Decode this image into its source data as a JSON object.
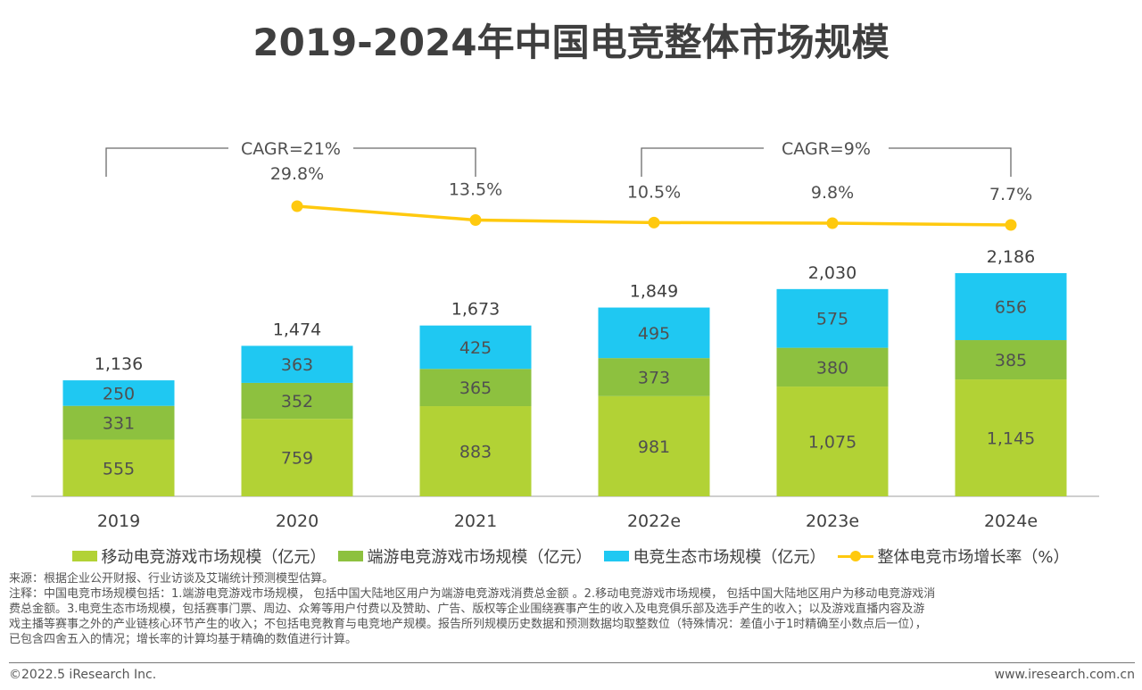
{
  "title": "2019-2024年中国电竞整体市场规模",
  "chart_data": {
    "type": "bar",
    "stacked": true,
    "title": "2019-2024年中国电竞整体市场规模",
    "categories": [
      "2019",
      "2020",
      "2021",
      "2022e",
      "2023e",
      "2024e"
    ],
    "series": [
      {
        "name": "移动电竞游戏市场规模（亿元）",
        "type": "bar",
        "color": "#b2d235",
        "values": [
          555,
          759,
          883,
          981,
          1075,
          1145
        ],
        "labels": [
          "555",
          "759",
          "883",
          "981",
          "1,075",
          "1,145"
        ]
      },
      {
        "name": "端游电竞游戏市场规模（亿元）",
        "type": "bar",
        "color": "#8dc13f",
        "values": [
          331,
          352,
          365,
          373,
          380,
          385
        ],
        "labels": [
          "331",
          "352",
          "365",
          "373",
          "380",
          "385"
        ]
      },
      {
        "name": "电竞生态市场规模（亿元）",
        "type": "bar",
        "color": "#1fc8f2",
        "values": [
          250,
          363,
          425,
          495,
          575,
          656
        ],
        "labels": [
          "250",
          "363",
          "425",
          "495",
          "575",
          "656"
        ]
      },
      {
        "name": "整体电竞市场增长率（%）",
        "type": "line",
        "color": "#ffc90e",
        "values": [
          null,
          29.8,
          13.5,
          10.5,
          9.8,
          7.7
        ],
        "labels": [
          "",
          "29.8%",
          "13.5%",
          "10.5%",
          "9.8%",
          "7.7%"
        ]
      }
    ],
    "totals": [
      1136,
      1474,
      1673,
      1849,
      2030,
      2186
    ],
    "total_labels": [
      "1,136",
      "1,474",
      "1,673",
      "1,849",
      "2,030",
      "2,186"
    ],
    "annotations": [
      {
        "text": "CAGR=21%",
        "from": "2019",
        "to": "2021"
      },
      {
        "text": "CAGR=9%",
        "from": "2022e",
        "to": "2024e"
      }
    ],
    "xlabel": "",
    "ylabel": "",
    "ylim": [
      0,
      2186
    ],
    "grid": false,
    "legend": "bottom"
  },
  "notes": {
    "source": "来源：根据企业公开财报、行业访谈及艾瑞统计预测模型估算。",
    "lines": [
      "注释：中国电竞市场规模包括：1.端游电竞游戏市场规模， 包括中国大陆地区用户为端游电竞游戏消费总金额 。2.移动电竞游戏市场规模， 包括中国大陆地区用户为移动电竞游戏消",
      "费总金额。3.电竞生态市场规模，包括赛事门票、周边、众筹等用户付费以及赞助、广告、版权等企业围绕赛事产生的收入及电竞俱乐部及选手产生的收入；以及游戏直播内容及游",
      "戏主播等赛事之外的产业链核心环节产生的收入；不包括电竞教育与电竞地产规模。报告所列规模历史数据和预测数据均取整数位（特殊情况：差值小于1时精确至小数点后一位），",
      "已包含四舍五入的情况；增长率的计算均基于精确的数值进行计算。"
    ]
  },
  "footer": {
    "copyright": "©2022.5 iResearch Inc.",
    "website": "www.iresearch.com.cn"
  }
}
